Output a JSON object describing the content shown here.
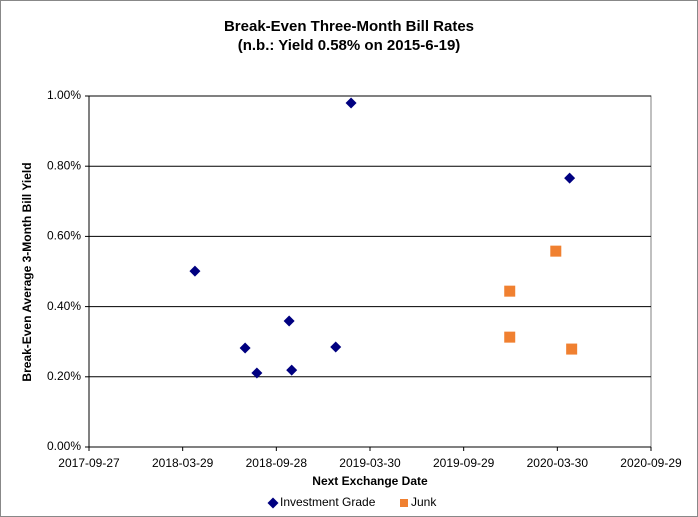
{
  "chart_data": {
    "type": "scatter",
    "title": "Break-Even Three-Month Bill Rates",
    "subtitle": "(n.b.: Yield 0.58% on 2015-6-19)",
    "x_label": "Next Exchange Date",
    "y_label": "Break-Even Average 3-Month Bill Yield",
    "xlim": [
      "2017-09-27",
      "2020-09-29"
    ],
    "xticks": [
      "2017-09-27",
      "2018-03-29",
      "2018-09-28",
      "2019-03-30",
      "2019-09-29",
      "2020-03-30",
      "2020-09-29"
    ],
    "ylim": [
      0,
      1
    ],
    "yticks": [
      {
        "value": 0,
        "label": "0.00%"
      },
      {
        "value": 0.2,
        "label": "0.20%"
      },
      {
        "value": 0.4,
        "label": "0.40%"
      },
      {
        "value": 0.6,
        "label": "0.60%"
      },
      {
        "value": 0.8,
        "label": "0.80%"
      },
      {
        "value": 1,
        "label": "1.00%"
      }
    ],
    "grid": true,
    "legend": "bottom",
    "series": [
      {
        "name": "Investment Grade",
        "color": "#000080",
        "marker": "diamond",
        "x": [
          "2018-04-22",
          "2018-07-29",
          "2018-08-21",
          "2018-10-23",
          "2018-10-28",
          "2019-01-22",
          "2019-02-21",
          "2020-04-23"
        ],
        "values": [
          0.501,
          0.282,
          0.211,
          0.359,
          0.219,
          0.285,
          0.98,
          0.766
        ]
      },
      {
        "name": "Junk",
        "color": "#f08030",
        "marker": "square",
        "x": [
          "2019-12-28",
          "2019-12-28",
          "2020-03-27",
          "2020-04-27"
        ],
        "values": [
          0.444,
          0.313,
          0.558,
          0.279
        ]
      }
    ]
  }
}
